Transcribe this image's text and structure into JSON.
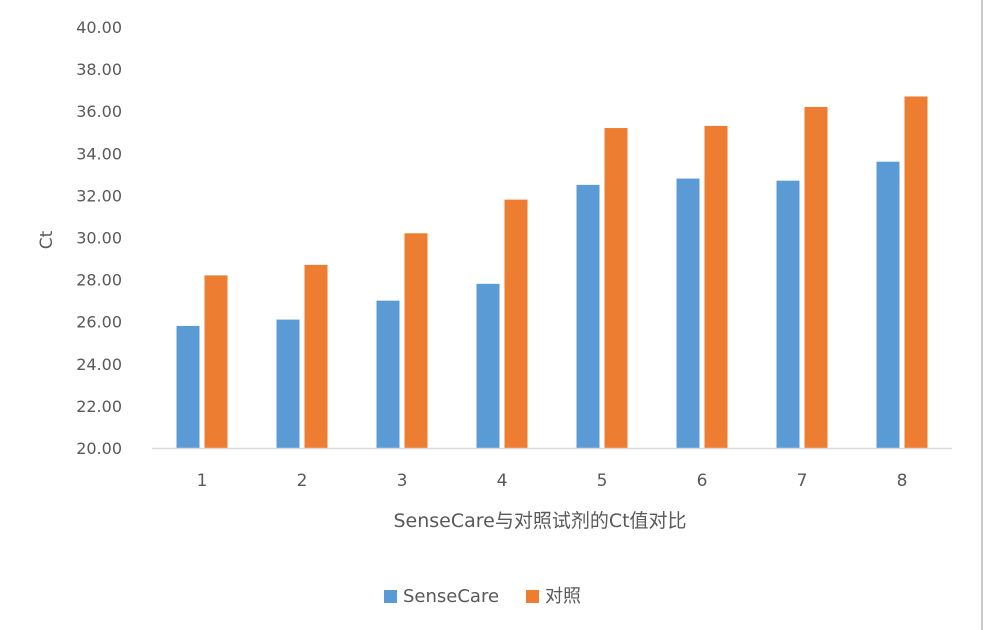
{
  "colors": {
    "series1": "#5b9bd5",
    "series2": "#ed7d31",
    "axis": "#d9d9d9",
    "text": "#595959"
  },
  "chart_data": {
    "type": "bar",
    "title": "",
    "xlabel": "SenseCare与对照试剂的Ct值对比",
    "ylabel": "Ct",
    "ylim": [
      20,
      40
    ],
    "yticks": [
      "20.00",
      "22.00",
      "24.00",
      "26.00",
      "28.00",
      "30.00",
      "32.00",
      "34.00",
      "36.00",
      "38.00",
      "40.00"
    ],
    "categories": [
      "1",
      "2",
      "3",
      "4",
      "5",
      "6",
      "7",
      "8"
    ],
    "grid": false,
    "legend_position": "bottom",
    "series": [
      {
        "name": "SenseCare",
        "values": [
          25.8,
          26.1,
          27.0,
          27.8,
          32.5,
          32.8,
          32.7,
          33.6
        ]
      },
      {
        "name": "对照",
        "values": [
          28.2,
          28.7,
          30.2,
          31.8,
          35.2,
          35.3,
          36.2,
          36.7
        ]
      }
    ]
  }
}
